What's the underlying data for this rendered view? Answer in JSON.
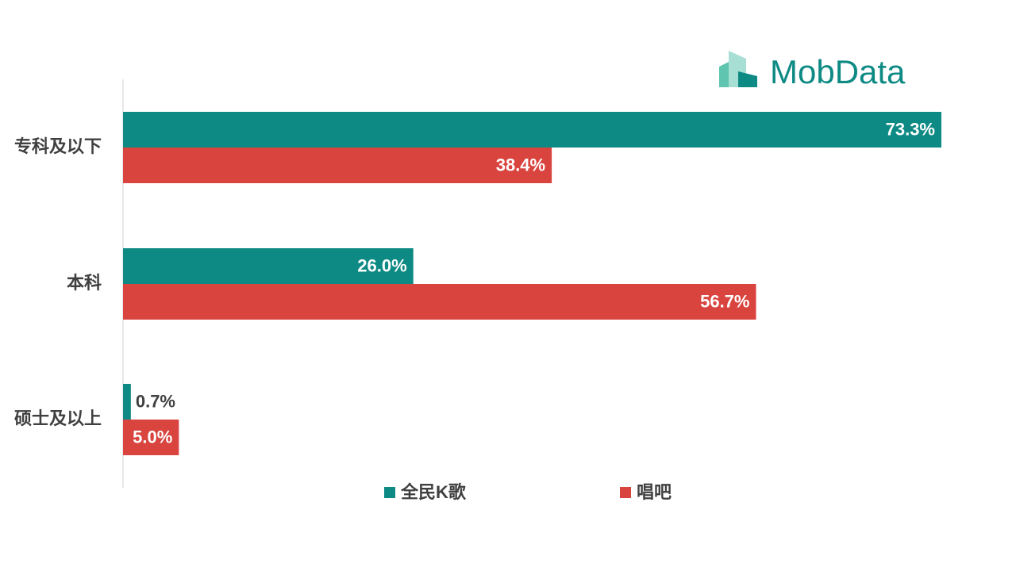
{
  "logo": "MobData",
  "chart_data": {
    "type": "barh",
    "categories": [
      "专科及以下",
      "本科",
      "硕士及以上"
    ],
    "series": [
      {
        "name": "全民K歌",
        "color": "#0e8a84",
        "values": [
          73.3,
          26.0,
          0.7
        ],
        "value_labels": [
          "73.3%",
          "26.0%",
          "0.7%"
        ]
      },
      {
        "name": "唱吧",
        "color": "#d9443f",
        "values": [
          38.4,
          56.7,
          5.0
        ],
        "value_labels": [
          "38.4%",
          "56.7%",
          "5.0%"
        ]
      }
    ]
  }
}
